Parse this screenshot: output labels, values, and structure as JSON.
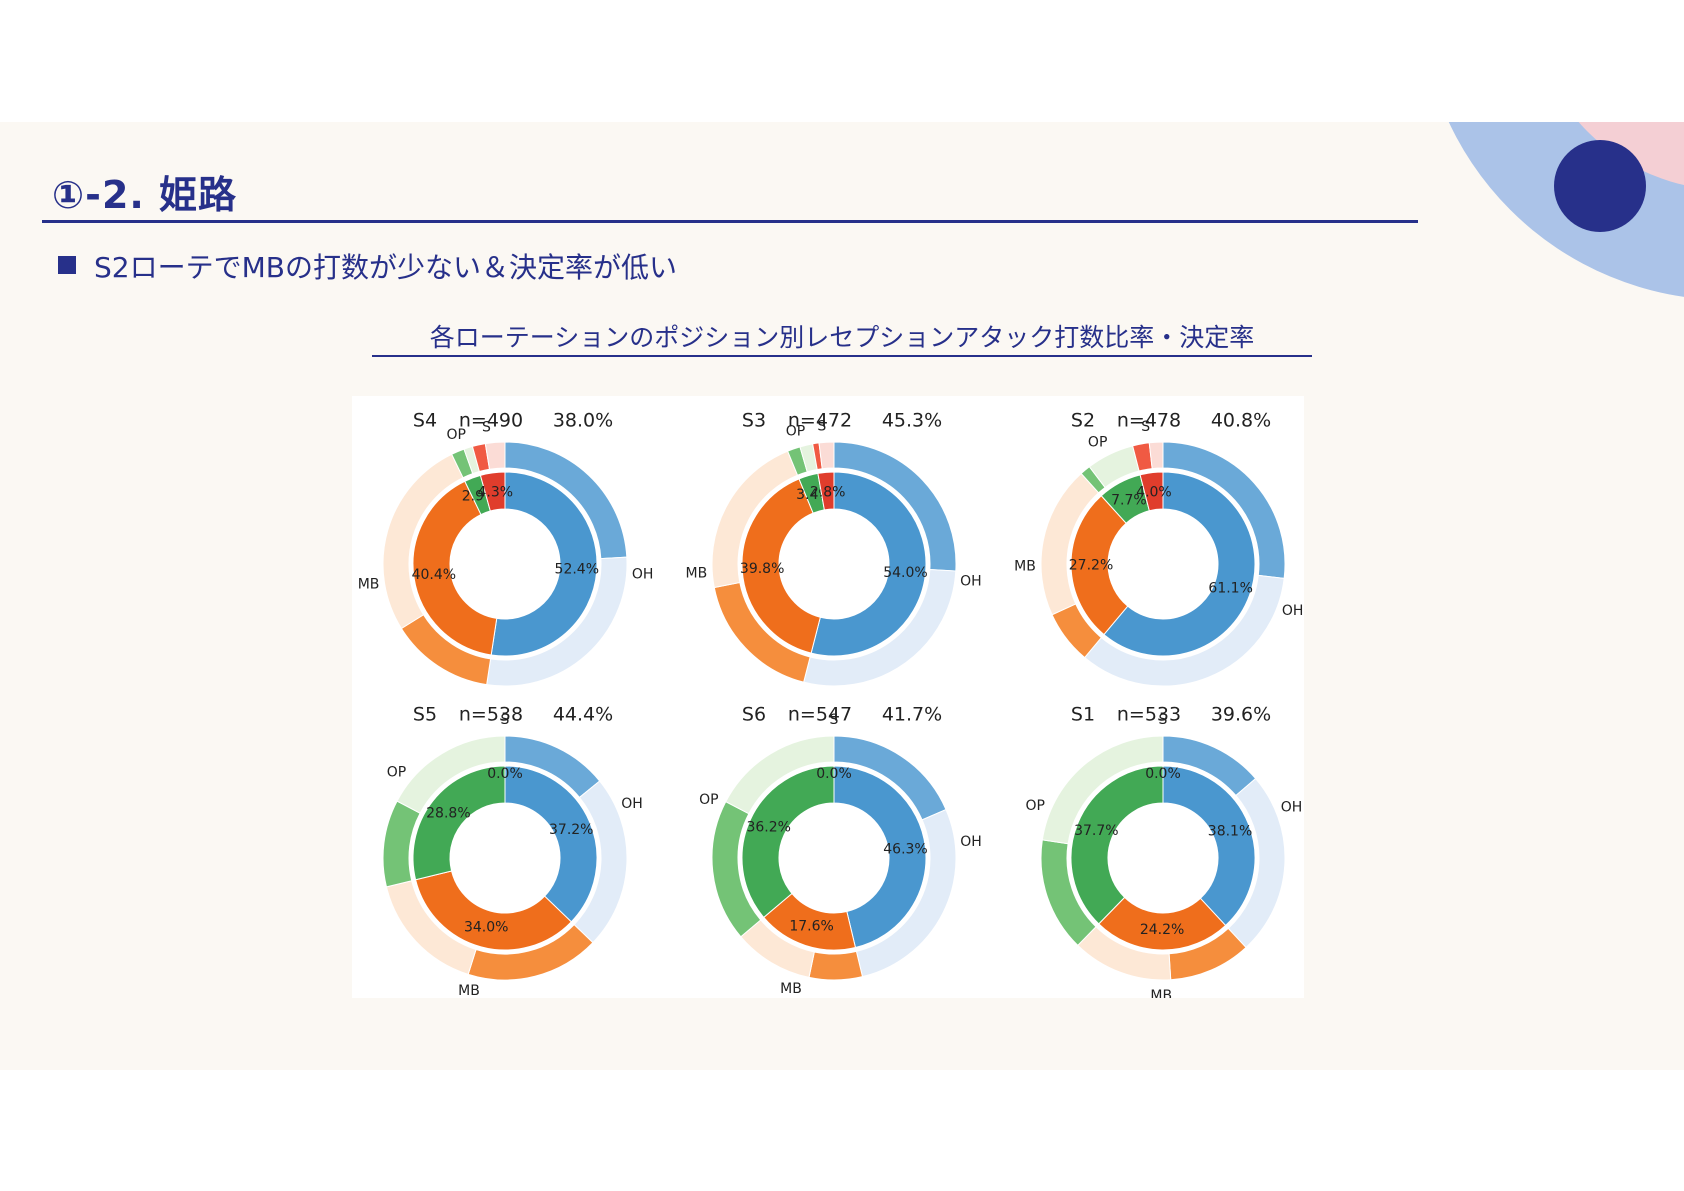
{
  "slide": {
    "title": "①-2. 姫路",
    "bullet": "S2ローテでMBの打数が少ない＆決定率が低い",
    "chart_title": "各ローテーションのポジション別レセプションアタック打数比率・決定率"
  },
  "colors": {
    "accent": "#27308a",
    "deco_outer": "#abc3e8",
    "deco_inner": "#f4cfd4",
    "OH": [
      "#4a97cf",
      "#6aa9d8",
      "#e2ecf8"
    ],
    "MB": [
      "#ef6e1c",
      "#f58e3d",
      "#fde8d6"
    ],
    "OP": [
      "#42a955",
      "#74c376",
      "#e5f3df"
    ],
    "S": [
      "#e03d2c",
      "#f05a43",
      "#fbdcd6"
    ]
  },
  "chart_data": [
    {
      "type": "donut",
      "rotation": "S4",
      "n": "n=490",
      "rate": "38.0%",
      "shares": {
        "OH": 52.4,
        "MB": 40.4,
        "OP": 2.9,
        "S": 4.3
      },
      "success_rate": {
        "OH": 46,
        "MB": 34,
        "OP": 60,
        "S": 40
      },
      "labels": {
        "OH": "52.4%",
        "MB": "40.4%",
        "OP": "2.9%",
        "S": "4.3%"
      }
    },
    {
      "type": "donut",
      "rotation": "S3",
      "n": "n=472",
      "rate": "45.3%",
      "shares": {
        "OH": 54.0,
        "MB": 39.8,
        "OP": 3.4,
        "S": 2.8
      },
      "success_rate": {
        "OH": 48,
        "MB": 45,
        "OP": 50,
        "S": 30
      },
      "labels": {
        "OH": "54.0%",
        "MB": "39.8%",
        "OP": "3.4%",
        "S": "2.8%"
      }
    },
    {
      "type": "donut",
      "rotation": "S2",
      "n": "n=478",
      "rate": "40.8%",
      "shares": {
        "OH": 61.1,
        "MB": 27.2,
        "OP": 7.7,
        "S": 4.0
      },
      "success_rate": {
        "OH": 44,
        "MB": 26,
        "OP": 18,
        "S": 55
      },
      "labels": {
        "OH": "61.1%",
        "MB": "27.2%",
        "OP": "7.7%",
        "S": "4.0%"
      }
    },
    {
      "type": "donut",
      "rotation": "S5",
      "n": "n=538",
      "rate": "44.4%",
      "shares": {
        "OH": 37.2,
        "MB": 34.0,
        "OP": 28.8,
        "S": 0.0
      },
      "success_rate": {
        "OH": 38,
        "MB": 52,
        "OP": 40,
        "S": 0
      },
      "labels": {
        "OH": "37.2%",
        "MB": "34.0%",
        "OP": "28.8%",
        "S": "0.0%"
      }
    },
    {
      "type": "donut",
      "rotation": "S6",
      "n": "n=547",
      "rate": "41.7%",
      "shares": {
        "OH": 46.3,
        "MB": 17.6,
        "OP": 36.2,
        "S": 0.0
      },
      "success_rate": {
        "OH": 40,
        "MB": 40,
        "OP": 52,
        "S": 0
      },
      "labels": {
        "OH": "46.3%",
        "MB": "17.6%",
        "OP": "36.2%",
        "S": "0.0%"
      }
    },
    {
      "type": "donut",
      "rotation": "S1",
      "n": "n=533",
      "rate": "39.6%",
      "shares": {
        "OH": 38.1,
        "MB": 24.2,
        "OP": 37.7,
        "S": 0.0
      },
      "success_rate": {
        "OH": 36,
        "MB": 45,
        "OP": 40,
        "S": 0
      },
      "labels": {
        "OH": "38.1%",
        "MB": "24.2%",
        "OP": "37.7%",
        "S": "0.0%"
      }
    }
  ]
}
